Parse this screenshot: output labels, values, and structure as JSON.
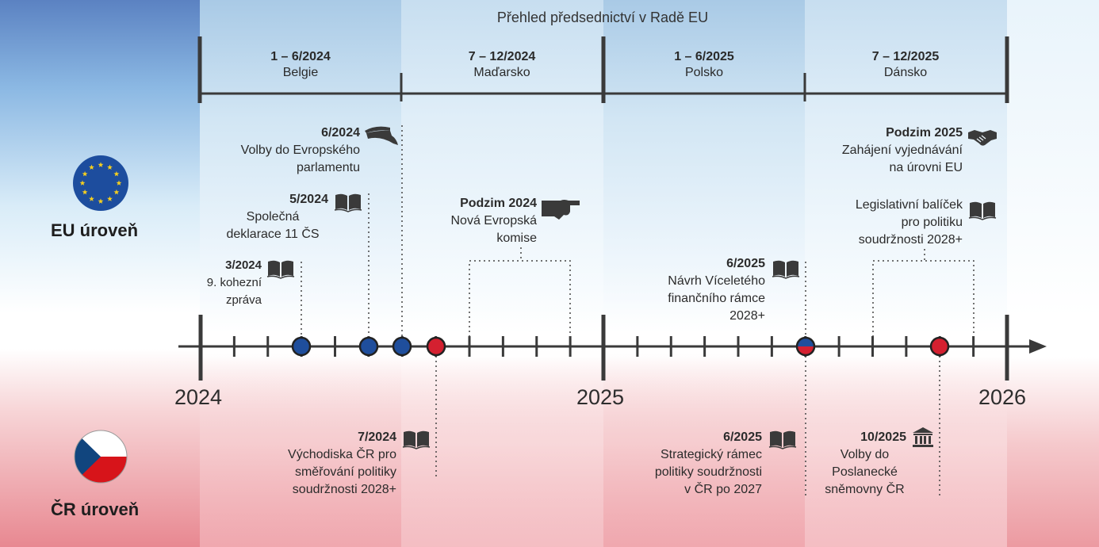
{
  "title": "Přehled předsednictví v Radě EU",
  "presidencies": [
    {
      "period": "1 – 6/2024",
      "country": "Belgie"
    },
    {
      "period": "7 – 12/2024",
      "country": "Maďarsko"
    },
    {
      "period": "1 – 6/2025",
      "country": "Polsko"
    },
    {
      "period": "7 – 12/2025",
      "country": "Dánsko"
    }
  ],
  "years": [
    "2024",
    "2025",
    "2026"
  ],
  "levels": {
    "eu": "EU úroveň",
    "cr": "ČR úroveň"
  },
  "colors": {
    "eu_blue": "#1f4e9c",
    "cz_red": "#d42030",
    "line": "#3a3a3a",
    "eu_flag": "#1d4d9e",
    "eu_star": "#f6cf1f"
  },
  "eu_events": [
    {
      "date": "6/2024",
      "text": [
        "Volby do Evropského",
        "parlamentu"
      ],
      "icon": "graduation-cap-icon"
    },
    {
      "date": "5/2024",
      "text": [
        "Společná",
        "deklarace 11 ČS"
      ],
      "icon": "book-icon"
    },
    {
      "date": "3/2024",
      "text": [
        "9. kohezní",
        "zpráva"
      ],
      "icon": "book-icon"
    },
    {
      "date": "Podzim 2024",
      "text": [
        "Nová Evropská",
        "komise"
      ],
      "icon": "hand-pointer-icon"
    },
    {
      "date": "Podzim 2025",
      "text": [
        "Zahájení vyjednávání",
        "na úrovni EU"
      ],
      "icon": "handshake-icon"
    },
    {
      "date": "",
      "text": [
        "Legislativní balíček",
        "pro politiku",
        "soudržnosti 2028+"
      ],
      "icon": "book-icon"
    },
    {
      "date": "6/2025",
      "text": [
        "Návrh Víceletého",
        "finančního rámce",
        "2028+"
      ],
      "icon": "book-icon"
    }
  ],
  "cr_events": [
    {
      "date": "7/2024",
      "text": [
        "Východiska ČR pro",
        "směřování politiky",
        "soudržnosti 2028+"
      ],
      "icon": "book-icon"
    },
    {
      "date": "6/2025",
      "text": [
        "Strategický rámec",
        "politiky soudržnosti",
        "v ČR po 2027"
      ],
      "icon": "book-icon"
    },
    {
      "date": "10/2025",
      "text": [
        "Volby do",
        "Poslanecké",
        "sněmovny ČR"
      ],
      "icon": "parliament-building-icon"
    }
  ]
}
